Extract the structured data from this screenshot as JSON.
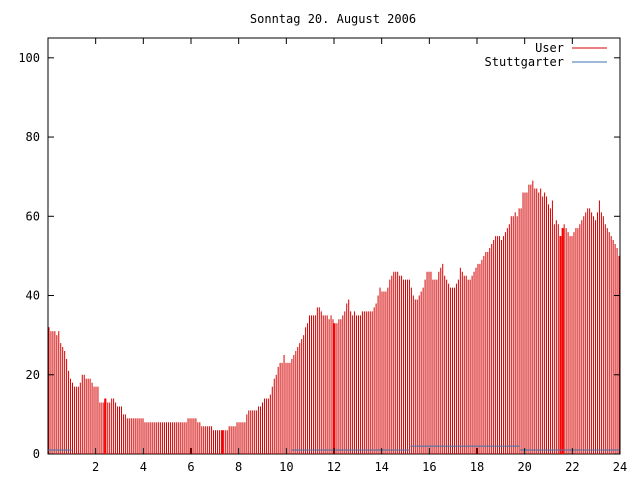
{
  "chart_data": {
    "type": "bar",
    "title": "Sonntag 20. August 2006",
    "xlabel": "",
    "ylabel": "",
    "xlim": [
      0,
      24
    ],
    "ylim": [
      0,
      105
    ],
    "x_ticks": [
      2,
      4,
      6,
      8,
      10,
      12,
      14,
      16,
      18,
      20,
      22,
      24
    ],
    "y_ticks": [
      0,
      20,
      40,
      60,
      80,
      100
    ],
    "x_tick_labels": [
      "2",
      "4",
      "6",
      "8",
      "10",
      "12",
      "14",
      "16",
      "18",
      "20",
      "22",
      "24"
    ],
    "y_tick_labels": [
      "0",
      "20",
      "40",
      "60",
      "80",
      "100"
    ],
    "grid": false,
    "legend_position": "top-right",
    "colors": {
      "User": "#d40000",
      "Stuttgarter": "#3a74b0"
    },
    "series": [
      {
        "name": "User",
        "style": "impulses",
        "color": "#d40000",
        "interval_hours": 0.08333,
        "y": [
          32,
          31,
          31,
          31,
          30,
          31,
          28,
          27,
          26,
          24,
          21,
          19,
          18,
          17,
          17,
          17,
          18,
          20,
          20,
          19,
          19,
          19,
          18,
          17,
          17,
          17,
          13,
          13,
          13,
          14,
          13,
          13,
          14,
          14,
          13,
          12,
          12,
          12,
          10,
          10,
          9,
          9,
          9,
          9,
          9,
          9,
          9,
          9,
          9,
          8,
          8,
          8,
          8,
          8,
          8,
          8,
          8,
          8,
          8,
          8,
          8,
          8,
          8,
          8,
          8,
          8,
          8,
          8,
          8,
          8,
          8,
          9,
          9,
          9,
          9,
          9,
          8,
          8,
          7,
          7,
          7,
          7,
          7,
          7,
          6,
          6,
          6,
          6,
          6,
          6,
          6,
          6,
          7,
          7,
          7,
          7,
          8,
          8,
          8,
          8,
          8,
          10,
          11,
          11,
          11,
          11,
          11,
          12,
          12,
          13,
          14,
          14,
          14,
          15,
          17,
          19,
          20,
          22,
          23,
          23,
          25,
          23,
          23,
          23,
          24,
          25,
          26,
          27,
          28,
          29,
          30,
          32,
          33,
          35,
          35,
          35,
          35,
          37,
          37,
          36,
          35,
          35,
          35,
          34,
          35,
          34,
          33,
          33,
          34,
          34,
          35,
          36,
          38,
          39,
          36,
          35,
          36,
          35,
          35,
          35,
          36,
          36,
          36,
          36,
          36,
          36,
          37,
          38,
          40,
          42,
          41,
          41,
          41,
          42,
          44,
          45,
          46,
          46,
          46,
          45,
          45,
          44,
          44,
          44,
          44,
          42,
          40,
          39,
          39,
          40,
          41,
          42,
          44,
          46,
          46,
          46,
          44,
          44,
          44,
          46,
          47,
          48,
          45,
          44,
          43,
          42,
          42,
          42,
          43,
          44,
          47,
          46,
          45,
          45,
          44,
          44,
          45,
          46,
          47,
          48,
          48,
          49,
          50,
          51,
          51,
          52,
          53,
          54,
          55,
          55,
          55,
          54,
          55,
          56,
          57,
          58,
          60,
          60,
          61,
          60,
          62,
          62,
          66,
          66,
          66,
          68,
          68,
          69,
          67,
          67,
          66,
          67,
          65,
          66,
          65,
          63,
          62,
          64,
          58,
          59,
          58,
          55,
          57,
          58,
          57,
          56,
          55,
          55,
          56,
          57,
          57,
          58,
          59,
          60,
          61,
          62,
          62,
          61,
          60,
          59,
          61,
          64,
          61,
          60,
          58,
          57,
          56,
          55,
          54,
          53,
          52,
          50
        ],
        "thick_lines_at_hours": [
          2.4,
          7.33,
          12.0,
          21.5,
          21.6
        ]
      },
      {
        "name": "Stuttgarter",
        "style": "line",
        "color": "#3a74b0",
        "segments": [
          {
            "x": [
              0.0,
              1.0
            ],
            "y": [
              1,
              1
            ]
          },
          {
            "x": [
              10.2,
              15.2
            ],
            "y": [
              1,
              1
            ]
          },
          {
            "x": [
              15.2,
              19.8
            ],
            "y": [
              2,
              2
            ]
          },
          {
            "x": [
              19.8,
              24.0
            ],
            "y": [
              1,
              1
            ]
          }
        ]
      }
    ]
  }
}
